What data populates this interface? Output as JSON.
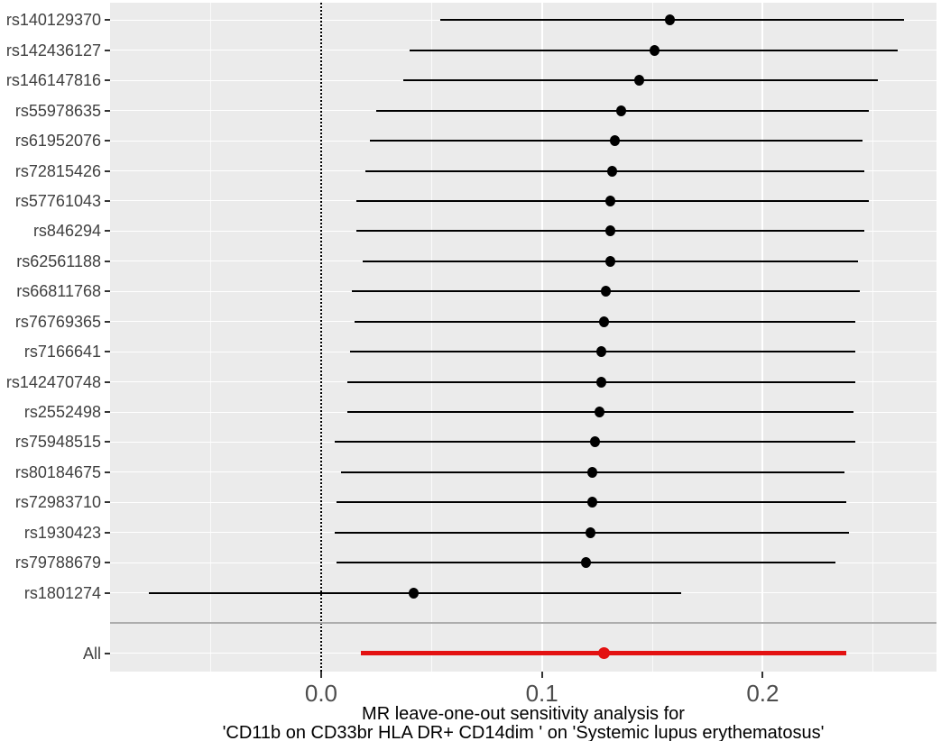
{
  "chart_data": {
    "type": "forest",
    "title": "",
    "xlabel_line1": "MR leave-one-out sensitivity analysis for",
    "xlabel_line2": "'CD11b on CD33br HLA DR+ CD14dim  ' on 'Systemic lupus erythematosus'",
    "xlim": [
      -0.0956,
      0.2787
    ],
    "x_major_ticks": [
      {
        "value": 0.0,
        "label": "0.0"
      },
      {
        "value": 0.1,
        "label": "0.1"
      },
      {
        "value": 0.2,
        "label": "0.2"
      }
    ],
    "x_minor_ticks": [
      -0.05,
      0.05,
      0.15,
      0.25
    ],
    "reference_line_x": 0.0,
    "grid": "on",
    "legend": "none",
    "rows": [
      {
        "label": "rs140129370",
        "est": 0.158,
        "lo": 0.054,
        "hi": 0.264
      },
      {
        "label": "rs142436127",
        "est": 0.151,
        "lo": 0.04,
        "hi": 0.261
      },
      {
        "label": "rs146147816",
        "est": 0.144,
        "lo": 0.037,
        "hi": 0.252
      },
      {
        "label": "rs55978635",
        "est": 0.136,
        "lo": 0.025,
        "hi": 0.248
      },
      {
        "label": "rs61952076",
        "est": 0.133,
        "lo": 0.022,
        "hi": 0.245
      },
      {
        "label": "rs72815426",
        "est": 0.132,
        "lo": 0.02,
        "hi": 0.246
      },
      {
        "label": "rs57761043",
        "est": 0.131,
        "lo": 0.016,
        "hi": 0.248
      },
      {
        "label": "rs846294",
        "est": 0.131,
        "lo": 0.016,
        "hi": 0.246
      },
      {
        "label": "rs62561188",
        "est": 0.131,
        "lo": 0.019,
        "hi": 0.243
      },
      {
        "label": "rs66811768",
        "est": 0.129,
        "lo": 0.014,
        "hi": 0.244
      },
      {
        "label": "rs76769365",
        "est": 0.128,
        "lo": 0.015,
        "hi": 0.242
      },
      {
        "label": "rs7166641",
        "est": 0.127,
        "lo": 0.013,
        "hi": 0.242
      },
      {
        "label": "rs142470748",
        "est": 0.127,
        "lo": 0.012,
        "hi": 0.242
      },
      {
        "label": "rs2552498",
        "est": 0.126,
        "lo": 0.012,
        "hi": 0.241
      },
      {
        "label": "rs75948515",
        "est": 0.124,
        "lo": 0.006,
        "hi": 0.242
      },
      {
        "label": "rs80184675",
        "est": 0.123,
        "lo": 0.009,
        "hi": 0.237
      },
      {
        "label": "rs72983710",
        "est": 0.123,
        "lo": 0.007,
        "hi": 0.238
      },
      {
        "label": "rs1930423",
        "est": 0.122,
        "lo": 0.006,
        "hi": 0.239
      },
      {
        "label": "rs79788679",
        "est": 0.12,
        "lo": 0.007,
        "hi": 0.233
      },
      {
        "label": "rs1801274",
        "est": 0.042,
        "lo": -0.078,
        "hi": 0.163
      }
    ],
    "separator_after_rows": true,
    "summary": {
      "label": "All",
      "est": 0.128,
      "lo": 0.018,
      "hi": 0.238
    },
    "colors": {
      "panel_background": "#EBEBEB",
      "gridline": "#FFFFFF",
      "ci_line": "#000000",
      "point": "#000000",
      "summary_color": "#E31111",
      "separator_line": "#ADADAD",
      "zero_line": "#000000",
      "axis_text": "#4D4D4D",
      "caption_text": "#000000"
    }
  }
}
